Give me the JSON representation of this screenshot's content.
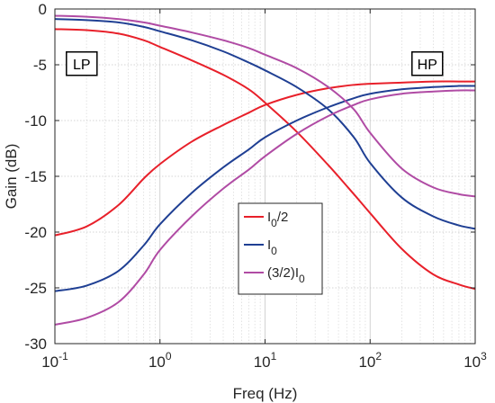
{
  "chart_data": {
    "type": "line",
    "title": "",
    "xlabel": "Freq (Hz)",
    "ylabel": "Gain (dB)",
    "xscale": "log",
    "xlim": [
      0.1,
      1000
    ],
    "ylim": [
      -30,
      0
    ],
    "grid": true,
    "x_ticks": [
      0.1,
      1,
      10,
      100,
      1000
    ],
    "x_tick_labels": [
      {
        "base": "10",
        "exp": "-1"
      },
      {
        "base": "10",
        "exp": "0"
      },
      {
        "base": "10",
        "exp": "1"
      },
      {
        "base": "10",
        "exp": "2"
      },
      {
        "base": "10",
        "exp": "3"
      }
    ],
    "y_ticks": [
      0,
      -5,
      -10,
      -15,
      -20,
      -25,
      -30
    ],
    "y_tick_labels": [
      "0",
      "-5",
      "-10",
      "-15",
      "-20",
      "-25",
      "-30"
    ],
    "x": [
      0.1,
      0.2,
      0.4,
      0.7,
      1,
      2,
      4,
      7,
      10,
      20,
      40,
      70,
      100,
      200,
      400,
      700,
      1000
    ],
    "legend_position": "center",
    "series": [
      {
        "name": "I0/2",
        "legend": {
          "main": "I",
          "sub": "0",
          "tail": "/2"
        },
        "filter": "LP",
        "color": "#e8202a",
        "values": [
          -1.8,
          -1.9,
          -2.2,
          -2.8,
          -3.4,
          -4.6,
          -5.9,
          -7.2,
          -8.4,
          -11.0,
          -14.0,
          -16.6,
          -18.3,
          -21.5,
          -23.8,
          -24.7,
          -25.1
        ]
      },
      {
        "name": "I0/2",
        "filter": "HP",
        "color": "#e8202a",
        "values": [
          -20.3,
          -19.5,
          -17.6,
          -15.2,
          -13.9,
          -11.9,
          -10.4,
          -9.3,
          -8.6,
          -7.7,
          -7.1,
          -6.8,
          -6.7,
          -6.6,
          -6.5,
          -6.5,
          -6.5
        ]
      },
      {
        "name": "I0",
        "legend": {
          "main": "I",
          "sub": "0",
          "tail": ""
        },
        "filter": "LP",
        "color": "#1f3f93",
        "values": [
          -0.9,
          -1.0,
          -1.2,
          -1.6,
          -2.0,
          -2.8,
          -3.8,
          -4.8,
          -5.5,
          -7.0,
          -9.0,
          -11.5,
          -13.8,
          -16.9,
          -18.6,
          -19.4,
          -19.7
        ]
      },
      {
        "name": "I0",
        "filter": "HP",
        "color": "#1f3f93",
        "values": [
          -25.3,
          -24.8,
          -23.5,
          -21.2,
          -19.3,
          -16.5,
          -14.2,
          -12.6,
          -11.5,
          -10.0,
          -8.8,
          -8.0,
          -7.6,
          -7.2,
          -7.0,
          -6.9,
          -6.9
        ]
      },
      {
        "name": "(3/2)I0",
        "legend": {
          "main": "(3/2)I",
          "sub": "0",
          "tail": ""
        },
        "filter": "LP",
        "color": "#b04ba4",
        "values": [
          -0.6,
          -0.7,
          -0.9,
          -1.2,
          -1.5,
          -2.1,
          -2.8,
          -3.5,
          -4.1,
          -5.3,
          -7.0,
          -9.0,
          -11.1,
          -14.3,
          -16.0,
          -16.6,
          -16.8
        ]
      },
      {
        "name": "(3/2)I0",
        "filter": "HP",
        "color": "#b04ba4",
        "values": [
          -28.3,
          -27.7,
          -26.3,
          -23.8,
          -21.6,
          -18.6,
          -16.1,
          -14.4,
          -13.2,
          -11.2,
          -9.6,
          -8.6,
          -8.1,
          -7.6,
          -7.4,
          -7.3,
          -7.3
        ]
      }
    ],
    "annotations": [
      {
        "text": "LP",
        "x": 0.18,
        "y": -4.9
      },
      {
        "text": "HP",
        "x": 350,
        "y": -4.9
      }
    ]
  }
}
